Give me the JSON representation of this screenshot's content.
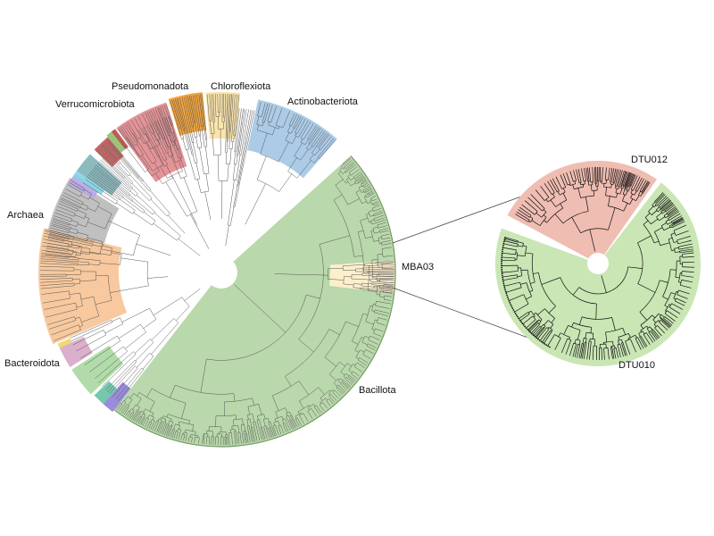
{
  "main_tree": {
    "clades": [
      {
        "key": "bacillota",
        "label": "Bacillota",
        "color": "#b5d6a7"
      },
      {
        "key": "mba03",
        "label": "MBA03",
        "color": "#fcefcc"
      },
      {
        "key": "actinobacteriota",
        "label": "Actinobacteriota",
        "color": "#a8c8e6"
      },
      {
        "key": "chloroflexiota",
        "label": "Chloroflexiota",
        "color": "#fbe3a6"
      },
      {
        "key": "pseudomonadota",
        "label": "Pseudomonadota",
        "color": "#f39f33"
      },
      {
        "key": "pseudomonadota_b",
        "label": "",
        "color": "#e2878c"
      },
      {
        "key": "verrucomicrobiota",
        "label": "Verrucomicrobiota",
        "color": "#c45a5a"
      },
      {
        "key": "archaea",
        "label": "Archaea",
        "color": "#bdbdbd"
      },
      {
        "key": "bacteroidota",
        "label": "Bacteroidota",
        "color": "#f8c699"
      }
    ],
    "minor_clade_colors": [
      "#7fb3b8",
      "#b8a6e8",
      "#7fd6e6",
      "#8fbf6a",
      "#a8d8a0",
      "#d7a7c8",
      "#8e7fd6",
      "#66c2a5",
      "#f4d35e",
      "#c0504d"
    ]
  },
  "inset_tree": {
    "clades": [
      {
        "key": "dtu012",
        "label": "DTU012",
        "color": "#f0bdb2"
      },
      {
        "key": "dtu010",
        "label": "DTU010",
        "color": "#c9e6b4"
      }
    ]
  }
}
